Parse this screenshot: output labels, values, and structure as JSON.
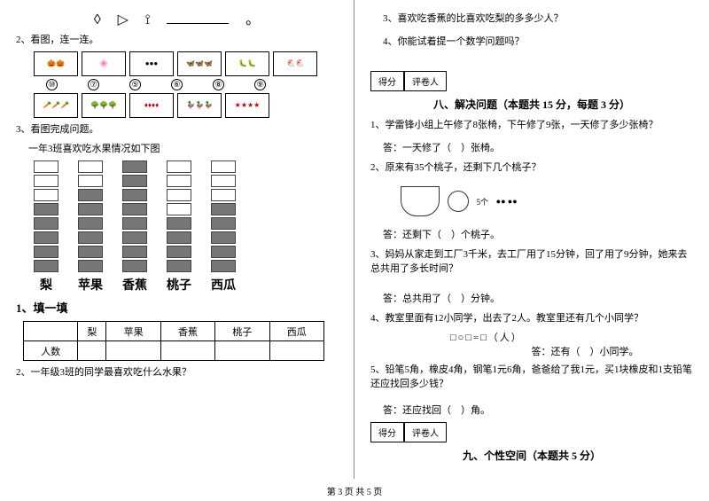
{
  "left": {
    "icons_underline": "__________。",
    "q2": "2、看图，连一连。",
    "row1_nums": [
      "⑩",
      "⑦",
      "⑤",
      "⑥",
      "⑧",
      "⑨"
    ],
    "q3": "3、看图完成问题。",
    "q3_sub": "一年3班喜欢吃水果情况如下图",
    "chart": {
      "labels": [
        "梨",
        "苹果",
        "香蕉",
        "桃子",
        "西瓜"
      ],
      "totals": [
        8,
        8,
        8,
        8,
        8
      ],
      "filled": [
        5,
        6,
        8,
        4,
        5
      ]
    },
    "fill_title": "1、填一填",
    "table_row_header": "人数",
    "q3_2": "2、一年级3班的同学最喜欢吃什么水果？"
  },
  "right": {
    "q3": "3、喜欢吃香蕉的比喜欢吃梨的多多少人？",
    "q4": "4、你能试着提一个数学问题吗？",
    "score_label1": "得分",
    "score_label2": "评卷人",
    "section8": "八、解决问题（本题共 15 分，每题 3 分）",
    "s8_1": "1、学雷锋小组上午修了8张椅，下午修了9张，一天修了多少张椅？",
    "s8_1a": "答：一天修了（　）张椅。",
    "s8_2": "2、原来有35个桃子，还剩下几个桃子？",
    "s8_2_img": "5个",
    "s8_2a": "答：还剩下（　）个桃子。",
    "s8_3": "3、妈妈从家走到工厂3千米，去工厂用了15分钟，回了用了9分钟，她来去总共用了多长时间？",
    "s8_3a": "答：总共用了（　）分钟。",
    "s8_4": "4、教室里面有12小同学，出去了2人。教室里还有几个小同学？",
    "s8_4_sq": "□○□=□（人）",
    "s8_4a": "答：还有（　）小同学。",
    "s8_5": "5、铅笔5角，橡皮4角，钢笔1元6角，爸爸给了我1元，买1块橡皮和1支铅笔还应找回多少钱？",
    "s8_5a": "答：还应找回（　）角。",
    "section9": "九、个性空间（本题共 5 分）"
  },
  "footer": "第 3 页  共 5 页"
}
